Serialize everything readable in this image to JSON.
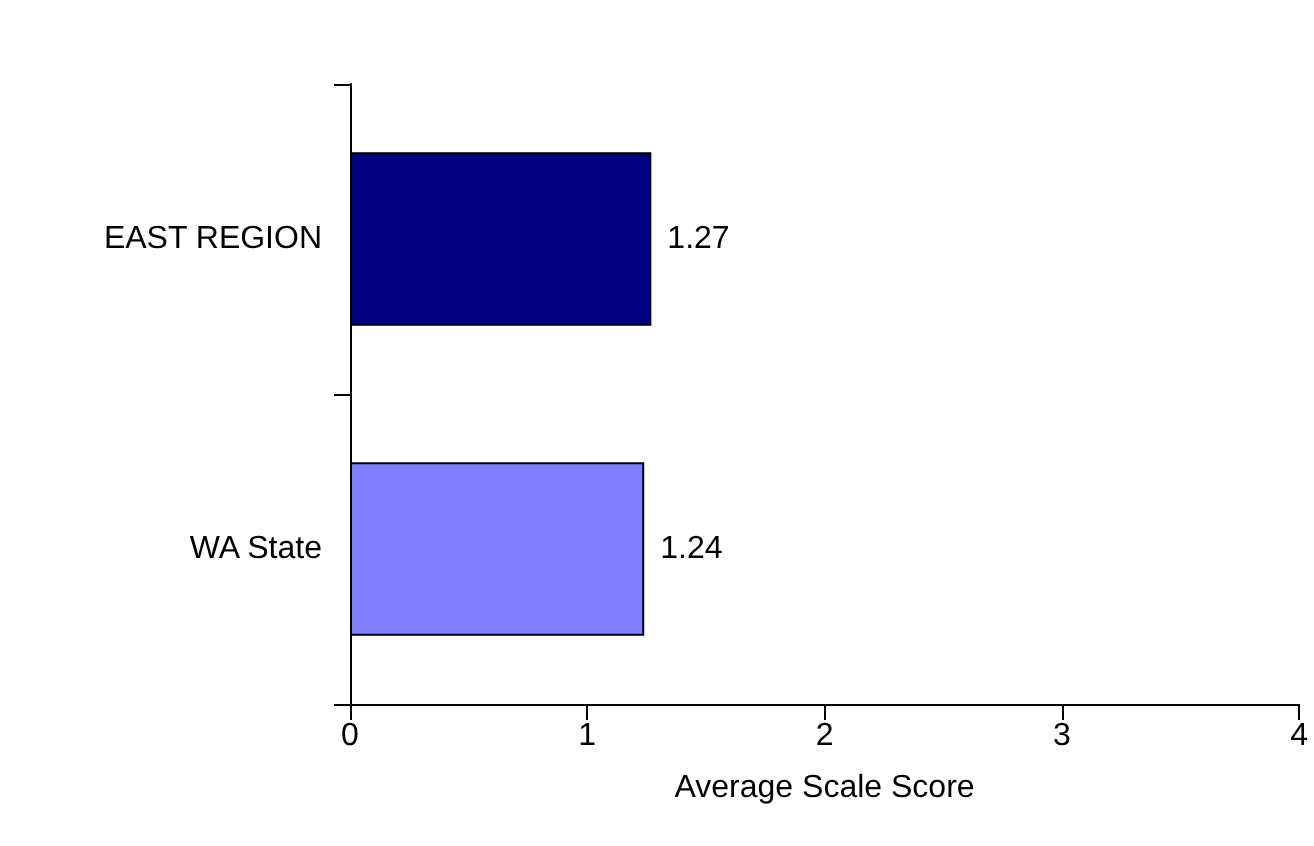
{
  "chart_data": {
    "type": "bar",
    "orientation": "horizontal",
    "xlabel": "Average Scale Score",
    "categories": [
      "EAST REGION",
      "WA State"
    ],
    "values": [
      1.27,
      1.24
    ],
    "colors": [
      "#000080",
      "#8080ff"
    ],
    "xlim": [
      0,
      4
    ],
    "xticks": [
      0,
      1,
      2,
      3,
      4
    ],
    "grid": false,
    "data_labels": true
  }
}
